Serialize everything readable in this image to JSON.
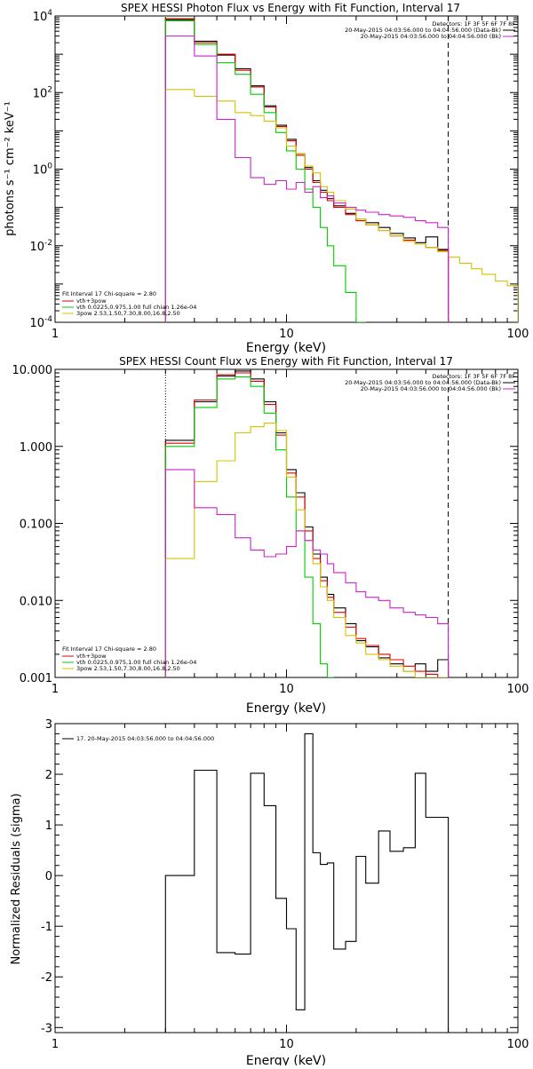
{
  "chart_data": [
    {
      "type": "line",
      "title": "SPEX HESSI Photon Flux vs Energy with Fit Function, Interval 17",
      "xlabel": "Energy (keV)",
      "ylabel": "photons s⁻¹ cm⁻² keV⁻¹",
      "xscale": "log",
      "yscale": "log",
      "xlim": [
        1,
        100
      ],
      "ylim": [
        0.0001,
        10000
      ],
      "x_ticks": [
        {
          "v": 1,
          "label": "1"
        },
        {
          "v": 10,
          "label": "10"
        },
        {
          "v": 100,
          "label": "100"
        }
      ],
      "y_ticks": [
        {
          "v": 0.0001,
          "base": "10",
          "exp": "-4"
        },
        {
          "v": 0.01,
          "base": "10",
          "exp": "-2"
        },
        {
          "v": 1,
          "base": "10",
          "exp": "0"
        },
        {
          "v": 100,
          "base": "10",
          "exp": "2"
        },
        {
          "v": 10000,
          "base": "10",
          "exp": "4"
        }
      ],
      "bin_edges": [
        3,
        4,
        5,
        6,
        7,
        8,
        9,
        10,
        11,
        12,
        13,
        14,
        15,
        16,
        18,
        20,
        22,
        25,
        28,
        32,
        36,
        40,
        45,
        50
      ],
      "model_bin_edges": [
        3,
        4,
        5,
        6,
        7,
        8,
        9,
        10,
        11,
        12,
        13,
        14,
        15,
        16,
        18,
        20,
        22,
        25,
        28,
        32,
        36,
        40,
        45,
        50,
        56,
        63,
        70,
        80,
        90,
        100
      ],
      "vlines": [
        {
          "x": 3,
          "style": "dotted",
          "color": "#d4c400"
        },
        {
          "x": 50,
          "style": "dashed",
          "color": "#000000"
        }
      ],
      "legend_top": {
        "lines": [
          "Detectors: 1F 3F 5F 6F 7F 8F",
          "20-May-2015 04:03:56.000 to 04:04:56.000 (Data-Bk)",
          "20-May-2015 04:03:56.000 to 04:04:56.000 (Bk)"
        ],
        "colors": [
          "",
          "#000000",
          "#cc22cc"
        ]
      },
      "legend_bottom": {
        "lines": [
          "Fit Interval 17    Chi-square = 2.80",
          "vth+3pow",
          "vth 0.0225,0.975,1.00  full chian 1.26e-04",
          "3pow 2.53,1.50,7.30,8.00,16.8,2.50"
        ],
        "colors": [
          "",
          "#dd0000",
          "#00cc00",
          "#d4c400"
        ]
      },
      "series": [
        {
          "name": "Data-Bk",
          "color": "#000000",
          "values": [
            8000,
            2200,
            950,
            420,
            150,
            45,
            14,
            6,
            2.5,
            1.1,
            0.5,
            0.28,
            0.17,
            0.11,
            0.07,
            0.05,
            0.04,
            0.03,
            0.021,
            0.016,
            0.012,
            0.017,
            0.008
          ]
        },
        {
          "name": "vth+3pow",
          "color": "#dd0000",
          "values": [
            8500,
            2000,
            1000,
            380,
            140,
            42,
            13,
            5.5,
            2.3,
            1.0,
            0.45,
            0.25,
            0.15,
            0.1,
            0.065,
            0.045,
            0.035,
            0.025,
            0.018,
            0.014,
            0.011,
            0.009,
            0.0075
          ]
        },
        {
          "name": "vth",
          "color": "#00cc00",
          "values": [
            7500,
            1800,
            600,
            300,
            90,
            30,
            9,
            3,
            1,
            0.3,
            0.1,
            0.03,
            0.01,
            0.003,
            0.0006,
            0.0001
          ]
        },
        {
          "name": "3pow",
          "color": "#d4c400",
          "values": [
            120,
            80,
            60,
            30,
            25,
            18,
            12,
            4,
            2.5,
            1.2,
            0.8,
            0.35,
            0.25,
            0.15,
            0.09,
            0.05,
            0.035,
            0.025,
            0.018,
            0.013,
            0.011,
            0.009,
            0.007,
            0.005,
            0.0035,
            0.0025,
            0.0018,
            0.0012,
            0.0009
          ]
        },
        {
          "name": "Bk",
          "color": "#cc22cc",
          "values": [
            3000,
            900,
            20,
            2,
            0.6,
            0.4,
            0.5,
            0.3,
            0.45,
            0.25,
            0.35,
            0.18,
            0.2,
            0.13,
            0.1,
            0.085,
            0.075,
            0.065,
            0.06,
            0.055,
            0.045,
            0.04,
            0.03
          ]
        }
      ]
    },
    {
      "type": "line",
      "title": "SPEX HESSI Count Flux vs Energy with Fit Function, Interval 17",
      "xlabel": "Energy (keV)",
      "ylabel": "",
      "xscale": "log",
      "yscale": "log",
      "xlim": [
        1,
        100
      ],
      "ylim": [
        0.001,
        10
      ],
      "x_ticks": [
        {
          "v": 1,
          "label": "1"
        },
        {
          "v": 10,
          "label": "10"
        },
        {
          "v": 100,
          "label": "100"
        }
      ],
      "y_ticks": [
        {
          "v": 0.001,
          "label": "0.001"
        },
        {
          "v": 0.01,
          "label": "0.010"
        },
        {
          "v": 0.1,
          "label": "0.100"
        },
        {
          "v": 1,
          "label": "1.000"
        },
        {
          "v": 10,
          "label": "10.000"
        }
      ],
      "bin_edges": [
        3,
        4,
        5,
        6,
        7,
        8,
        9,
        10,
        11,
        12,
        13,
        14,
        15,
        16,
        18,
        20,
        22,
        25,
        28,
        32,
        36,
        40,
        45,
        50
      ],
      "vlines": [
        {
          "x": 3,
          "style": "dotted",
          "color": "#000000"
        },
        {
          "x": 50,
          "style": "dashed",
          "color": "#000000"
        }
      ],
      "legend_top": {
        "lines": [
          "Detectors: 1F 3F 5F 6F 7F 8F",
          "20-May-2015 04:03:56.000 to 04:04:56.000 (Data-Bk)",
          "20-May-2015 04:03:56.000 to 04:04:56.000 (Bk)"
        ],
        "colors": [
          "",
          "#000000",
          "#cc22cc"
        ]
      },
      "legend_bottom": {
        "lines": [
          "Fit Interval 17    Chi-square = 2.80",
          "vth+3pow",
          "vth 0.0225,0.975,1.00  full chian 1.26e-04",
          "3pow 2.53,1.50,7.30,8.00,16.8,2.50"
        ],
        "colors": [
          "",
          "#dd0000",
          "#00cc00",
          "#d4c400"
        ]
      },
      "series": [
        {
          "name": "Data-Bk",
          "color": "#000000",
          "values": [
            1.2,
            3.8,
            8.2,
            9.5,
            7.5,
            3.8,
            1.5,
            0.5,
            0.25,
            0.09,
            0.04,
            0.02,
            0.012,
            0.008,
            0.005,
            0.003,
            0.0025,
            0.0018,
            0.0015,
            0.0012,
            0.0015,
            0.0012,
            0.0017
          ]
        },
        {
          "name": "vth+3pow",
          "color": "#dd0000",
          "values": [
            1.1,
            4.0,
            8.5,
            9.0,
            7.0,
            3.5,
            1.4,
            0.45,
            0.22,
            0.08,
            0.035,
            0.018,
            0.011,
            0.007,
            0.0045,
            0.0032,
            0.0026,
            0.002,
            0.0017,
            0.0014,
            0.0012,
            0.0011,
            0.001
          ]
        },
        {
          "name": "vth",
          "color": "#00cc00",
          "values": [
            1.0,
            3.2,
            7.5,
            8.0,
            6.0,
            2.7,
            0.9,
            0.22,
            0.08,
            0.02,
            0.005,
            0.0015,
            0.0005
          ]
        },
        {
          "name": "3pow",
          "color": "#d4c400",
          "values": [
            0.035,
            0.35,
            0.65,
            1.5,
            1.8,
            2.0,
            1.6,
            0.4,
            0.15,
            0.06,
            0.03,
            0.015,
            0.01,
            0.006,
            0.0035,
            0.0028,
            0.002,
            0.0017,
            0.0014,
            0.0012,
            0.001,
            0.0009,
            0.0008
          ]
        },
        {
          "name": "Bk",
          "color": "#cc22cc",
          "values": [
            0.5,
            0.16,
            0.13,
            0.065,
            0.045,
            0.037,
            0.04,
            0.05,
            0.08,
            0.06,
            0.045,
            0.04,
            0.03,
            0.023,
            0.017,
            0.013,
            0.011,
            0.01,
            0.008,
            0.007,
            0.0065,
            0.006,
            0.005
          ]
        }
      ]
    },
    {
      "type": "line",
      "title": "",
      "xlabel": "Energy (keV)",
      "ylabel": "Normalized Residuals (sigma)",
      "xscale": "log",
      "yscale": "linear",
      "xlim": [
        1,
        100
      ],
      "ylim": [
        -3.1,
        3.0
      ],
      "x_ticks": [
        {
          "v": 1,
          "label": "1"
        },
        {
          "v": 10,
          "label": "10"
        },
        {
          "v": 100,
          "label": "100"
        }
      ],
      "y_ticks": [
        {
          "v": -3,
          "label": "-3"
        },
        {
          "v": -2,
          "label": "-2"
        },
        {
          "v": -1,
          "label": "-1"
        },
        {
          "v": 0,
          "label": "0"
        },
        {
          "v": 1,
          "label": "1"
        },
        {
          "v": 2,
          "label": "2"
        },
        {
          "v": 3,
          "label": "3"
        }
      ],
      "bin_edges": [
        3,
        4,
        5,
        6,
        7,
        8,
        9,
        10,
        11,
        12,
        13,
        14,
        15,
        16,
        18,
        20,
        22,
        25,
        28,
        32,
        36,
        40,
        45,
        50
      ],
      "legend_top": {
        "lines": [
          "17. 20-May-2015 04:03:56.000 to 04:04:56.000"
        ],
        "colors": [
          "#000000"
        ]
      },
      "series": [
        {
          "name": "17. 20-May-2015 04:03:56.000 to 04:04:56.000",
          "color": "#000000",
          "values": [
            0.0,
            2.08,
            -1.52,
            -1.55,
            2.02,
            1.38,
            -0.45,
            -1.05,
            -2.65,
            2.8,
            0.45,
            0.22,
            0.25,
            -1.45,
            -1.3,
            0.38,
            -0.15,
            0.88,
            0.48,
            0.55,
            2.02,
            1.15,
            1.15
          ]
        }
      ]
    }
  ]
}
